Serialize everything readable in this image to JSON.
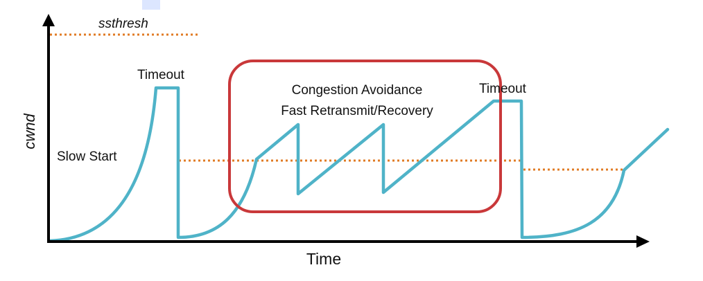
{
  "labels": {
    "ssthresh": "ssthresh",
    "y_axis": "cwnd",
    "x_axis": "Time",
    "slow_start": "Slow Start",
    "timeout_1": "Timeout",
    "timeout_2": "Timeout",
    "box_line_1": "Congestion Avoidance",
    "box_line_2": "Fast Retransmit/Recovery"
  },
  "colors": {
    "curve": "#4fb3c8",
    "threshold": "#e07b24",
    "highlight_box": "#c9383a",
    "axis": "#000000"
  }
}
